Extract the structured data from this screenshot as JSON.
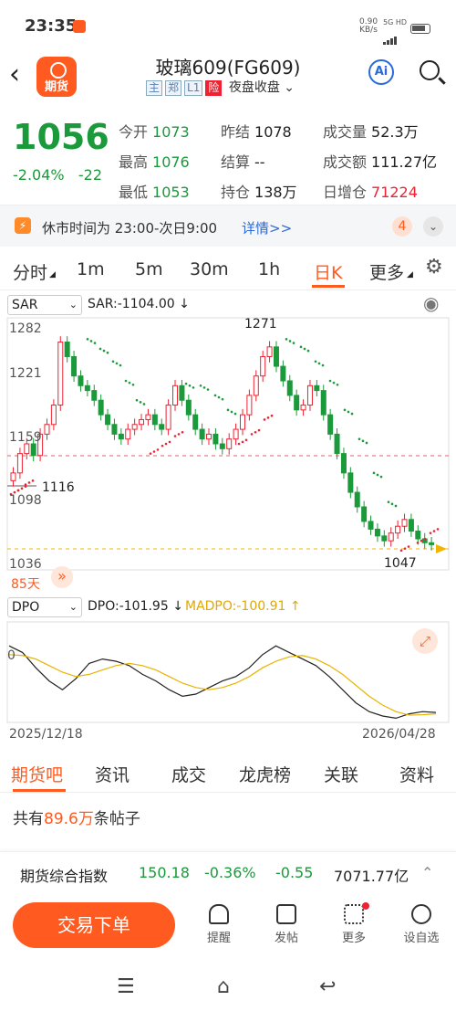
{
  "status": {
    "time": "23:35",
    "net_speed": "0.90",
    "net_unit": "KB/s",
    "net_type": "5G HD"
  },
  "header": {
    "logo_text": "期货",
    "title": "玻璃609(FG609)",
    "tags": [
      "主",
      "郑",
      "L1",
      "险"
    ],
    "session": "夜盘收盘",
    "ai_label": "Ai"
  },
  "quote": {
    "price": "1056",
    "pct": "-2.04%",
    "chg": "-22",
    "rows": [
      [
        {
          "label": "今开",
          "value": "1073"
        },
        {
          "label": "昨结",
          "value": "1078"
        },
        {
          "label": "成交量",
          "value": "52.3万"
        }
      ],
      [
        {
          "label": "最高",
          "value": "1076"
        },
        {
          "label": "结算",
          "value": "--"
        },
        {
          "label": "成交额",
          "value": "111.27亿"
        }
      ],
      [
        {
          "label": "最低",
          "value": "1053"
        },
        {
          "label": "持仓",
          "value": "138万"
        },
        {
          "label": "日增仓",
          "value": "71224"
        }
      ]
    ]
  },
  "notice": {
    "text": "休市时间为 23:00-次日9:00",
    "link": "详情>>",
    "count": "4"
  },
  "tabs": [
    "分时",
    "1m",
    "5m",
    "30m",
    "1h",
    "日K",
    "更多"
  ],
  "chart": {
    "main_indicator": "SAR",
    "main_value": "SAR:-1104.00 ↓",
    "y_ticks": [
      "1282",
      "1221",
      "1159",
      "1098",
      "1036"
    ],
    "high_label": "1271",
    "low_label": "1116",
    "last_low_label": "1047",
    "days_label": "85天",
    "sub_indicator": "DPO",
    "dpo_value": "DPO:-101.95 ↓",
    "madpo_value": "MADPO:-100.91 ↑",
    "sub_zero": "0",
    "start_date": "2025/12/18",
    "end_date": "2026/04/28"
  },
  "bottom_tabs": [
    "期货吧",
    "资讯",
    "成交",
    "龙虎榜",
    "关联",
    "资料"
  ],
  "posts": {
    "prefix": "共有",
    "count": "89.6万",
    "suffix": "条帖子"
  },
  "index_bar": {
    "name": "期货综合指数",
    "value": "150.18",
    "pct": "-0.36%",
    "chg": "-0.55",
    "amount": "7071.77亿"
  },
  "actions": {
    "trade": "交易下单",
    "items": [
      "提醒",
      "发帖",
      "更多",
      "设自选"
    ]
  },
  "colors": {
    "accent": "#ff5a1f",
    "down": "#1a9a3a",
    "up": "#e23"
  }
}
